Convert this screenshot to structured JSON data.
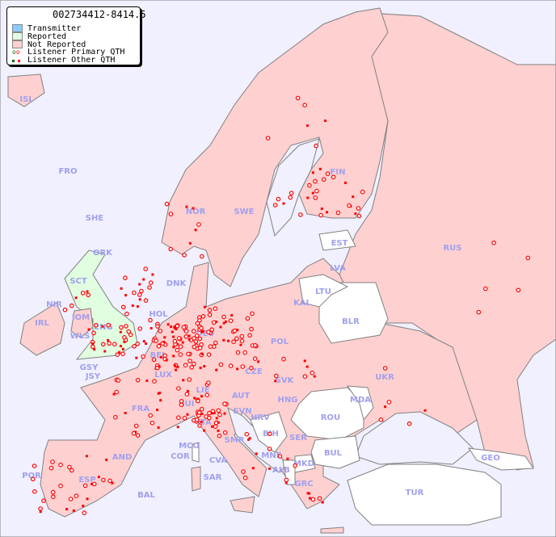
{
  "map_id": "002734412-8414.5",
  "legend": {
    "items": [
      {
        "label": "Transmitter",
        "color": "#88ccff"
      },
      {
        "label": "Reported",
        "color": "#e0ffe0"
      },
      {
        "label": "Not Reported",
        "color": "#ffd0d0"
      },
      {
        "label": "Listener Primary QTH",
        "marker": "circle"
      },
      {
        "label": "Listener Other QTH",
        "marker": "square"
      }
    ]
  },
  "colors": {
    "sea": "#f0f0ff",
    "not_reported": "#ffd0d0",
    "reported": "#e0ffe0",
    "no_data": "#ffffff",
    "marker": "#ff0000",
    "label": "#a0a0ee"
  },
  "countries": [
    "ISL",
    "FRO",
    "SHE",
    "ORK",
    "NOR",
    "SWE",
    "FIN",
    "RUS",
    "EST",
    "LVA",
    "LTU",
    "KAL",
    "BLR",
    "UKR",
    "MDA",
    "ROU",
    "BUL",
    "TUR",
    "GEO",
    "POL",
    "DEU",
    "DNK",
    "HOL",
    "BEL",
    "LUX",
    "FRA",
    "SUI",
    "LIE",
    "AUT",
    "CZE",
    "SVK",
    "HNG",
    "SVN",
    "HRV",
    "BIH",
    "SER",
    "MNE",
    "ALB",
    "MKD",
    "GRC",
    "ITA",
    "SMR",
    "CVA",
    "COR",
    "SAR",
    "MCO",
    "AND",
    "ESP",
    "POR",
    "BAL",
    "GSY",
    "JSY",
    "IRL",
    "NIR",
    "WLS",
    "IOM",
    "ENG",
    "SCT"
  ]
}
